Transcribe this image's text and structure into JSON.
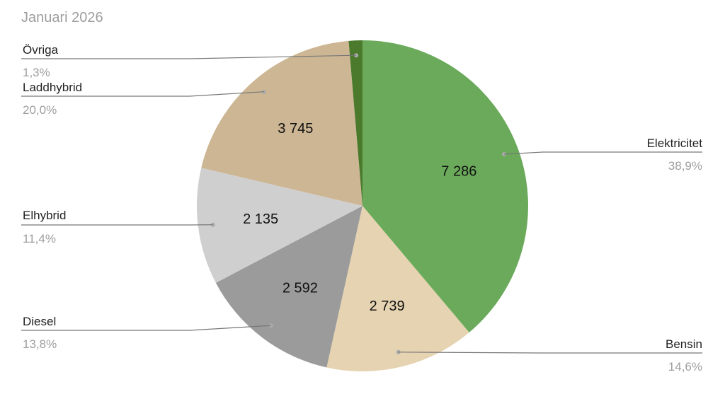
{
  "chart_data": {
    "type": "pie",
    "title": "Januari 2026",
    "slices": [
      {
        "label": "Elektricitet",
        "value": 7286,
        "value_label": "7 286",
        "percent_label": "38,9%",
        "color": "#6aaa5a"
      },
      {
        "label": "Bensin",
        "value": 2739,
        "value_label": "2 739",
        "percent_label": "14,6%",
        "color": "#e6d3b1"
      },
      {
        "label": "Diesel",
        "value": 2592,
        "value_label": "2 592",
        "percent_label": "13,8%",
        "color": "#9b9b9b"
      },
      {
        "label": "Elhybrid",
        "value": 2135,
        "value_label": "2 135",
        "percent_label": "11,4%",
        "color": "#cfcfcf"
      },
      {
        "label": "Laddhybrid",
        "value": 3745,
        "value_label": "3 745",
        "percent_label": "20,0%",
        "color": "#cdb694"
      },
      {
        "label": "Övriga",
        "value": 250,
        "value_label": "",
        "percent_label": "1,3%",
        "color": "#4b7a2c"
      }
    ]
  }
}
